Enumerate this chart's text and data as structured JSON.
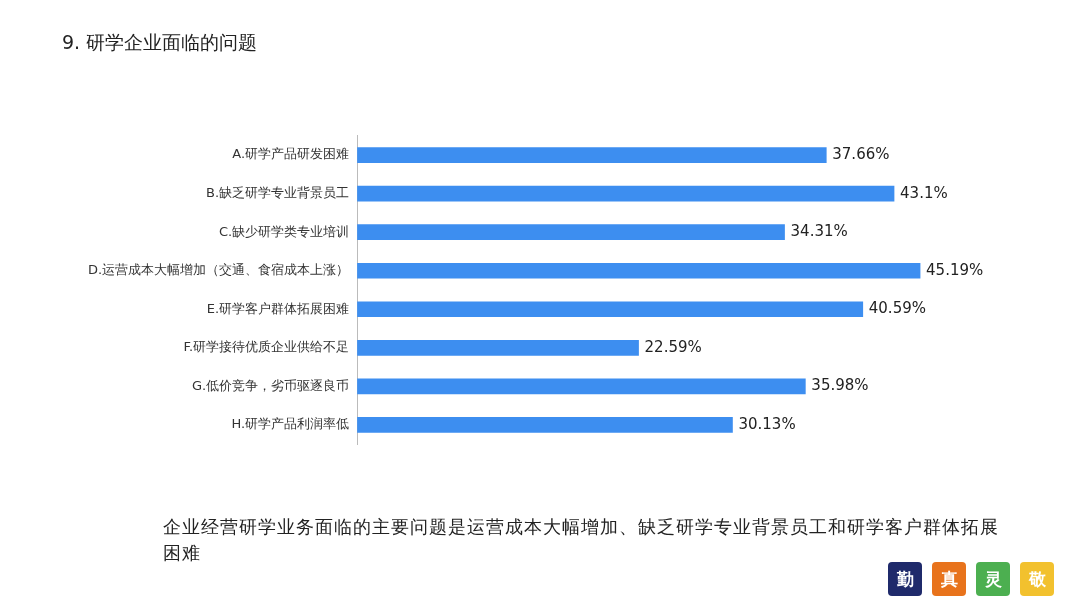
{
  "chart_data": {
    "type": "bar",
    "orientation": "horizontal",
    "title": "9. 研学企业面临的问题",
    "categories": [
      "A.研学产品研发困难",
      "B.缺乏研学专业背景员工",
      "C.缺少研学类专业培训",
      "D.运营成本大幅增加（交通、食宿成本上涨）",
      "E.研学客户群体拓展困难",
      "F.研学接待优质企业供给不足",
      "G.低价竞争，劣币驱逐良币",
      "H.研学产品利润率低"
    ],
    "values": [
      37.66,
      43.1,
      34.31,
      45.19,
      40.59,
      22.59,
      35.98,
      30.13
    ],
    "value_labels": [
      "37.66%",
      "43.1%",
      "34.31%",
      "45.19%",
      "40.59%",
      "22.59%",
      "35.98%",
      "30.13%"
    ],
    "color": "#3d8ef0",
    "tick_labels": "y",
    "annotations": [
      "企业经营研学业务面临的主要问题是运营成本大幅增加、缺乏研学专业背景员工和研学客户群体拓展困难",
      "勤",
      "真",
      "灵",
      "敬"
    ]
  }
}
